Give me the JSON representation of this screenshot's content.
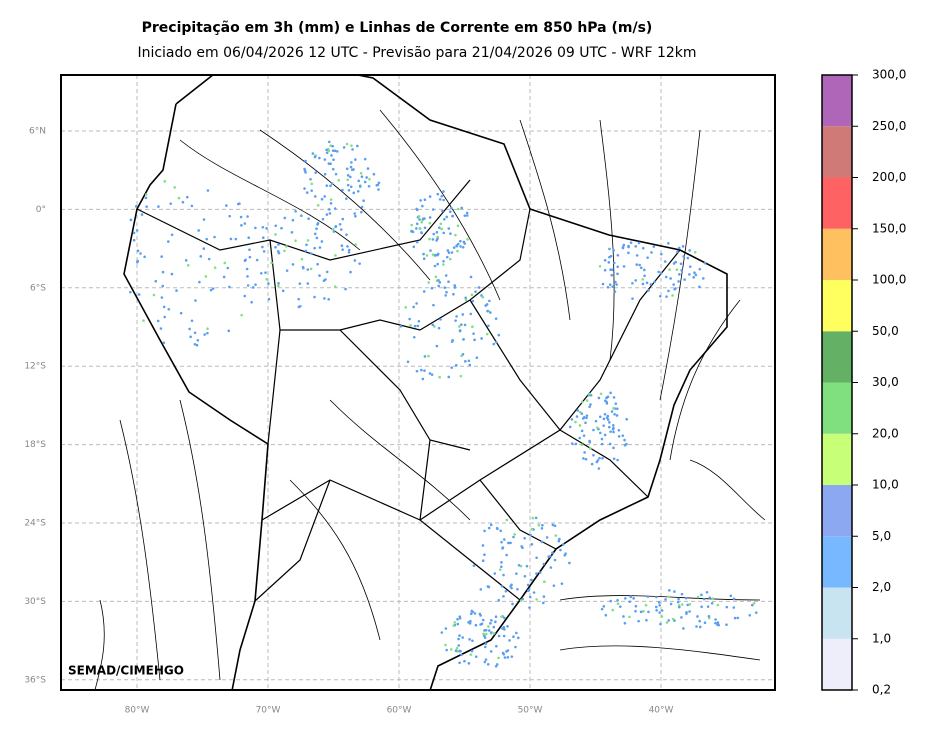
{
  "header": {
    "title": "Precipitação em 3h (mm) e Linhas de Corrente em 850 hPa (m/s)",
    "subtitle": "Iniciado em 06/04/2026 12 UTC - Previsão para 21/04/2026 09 UTC - WRF 12km"
  },
  "map": {
    "lat_labels": [
      "6°N",
      "0°",
      "6°S",
      "12°S",
      "18°S",
      "24°S",
      "30°S",
      "36°S"
    ],
    "lon_labels": [
      "80°W",
      "70°W",
      "60°W",
      "50°W",
      "40°W"
    ],
    "credit": "SEMAD/CIMEHGO"
  },
  "colorbar": {
    "labels": [
      "0,2",
      "1,0",
      "2,0",
      "5,0",
      "10,0",
      "20,0",
      "30,0",
      "50,0",
      "100,0",
      "150,0",
      "200,0",
      "250,0",
      "300,0"
    ],
    "colors": [
      "#eeeefa",
      "#c8e4f0",
      "#78b8ff",
      "#8ca8f0",
      "#c8ff78",
      "#80e080",
      "#64b064",
      "#ffff60",
      "#ffc060",
      "#ff6262",
      "#d07a78",
      "#b066b8"
    ]
  }
}
